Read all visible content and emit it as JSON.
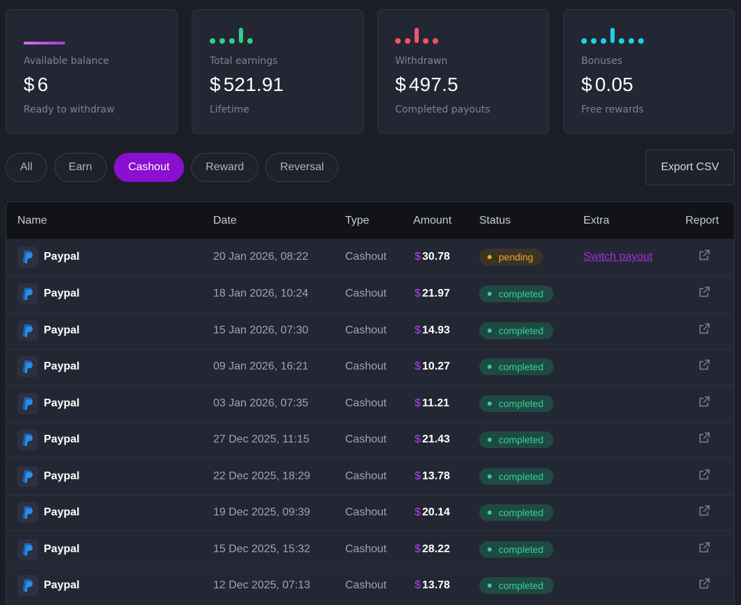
{
  "stats": [
    {
      "label": "Available balance",
      "currency": "$",
      "value": "6",
      "sub": "Ready to withdraw",
      "deco": "line",
      "color": "#c35ef0"
    },
    {
      "label": "Total earnings",
      "currency": "$",
      "value": "521.91",
      "sub": "Lifetime",
      "deco": "dots",
      "color": "#2fcf8b"
    },
    {
      "label": "Withdrawn",
      "currency": "$",
      "value": "497.5",
      "sub": "Completed payouts",
      "deco": "dots",
      "color": "#f0536b"
    },
    {
      "label": "Bonuses",
      "currency": "$",
      "value": "0.05",
      "sub": "Free rewards",
      "deco": "dots",
      "color": "#19d3ea"
    }
  ],
  "filters": {
    "tabs": [
      "All",
      "Earn",
      "Cashout",
      "Reward",
      "Reversal"
    ],
    "active": "Cashout",
    "export_label": "Export CSV"
  },
  "table": {
    "columns": [
      "Name",
      "Date",
      "Type",
      "Amount",
      "Status",
      "Extra",
      "Report"
    ],
    "rows": [
      {
        "name": "Paypal",
        "date": "20 Jan 2026, 08:22",
        "type": "Cashout",
        "currency": "$",
        "amount": "30.78",
        "status": "pending",
        "extra": "Switch payout"
      },
      {
        "name": "Paypal",
        "date": "18 Jan 2026, 10:24",
        "type": "Cashout",
        "currency": "$",
        "amount": "21.97",
        "status": "completed",
        "extra": ""
      },
      {
        "name": "Paypal",
        "date": "15 Jan 2026, 07:30",
        "type": "Cashout",
        "currency": "$",
        "amount": "14.93",
        "status": "completed",
        "extra": ""
      },
      {
        "name": "Paypal",
        "date": "09 Jan 2026, 16:21",
        "type": "Cashout",
        "currency": "$",
        "amount": "10.27",
        "status": "completed",
        "extra": ""
      },
      {
        "name": "Paypal",
        "date": "03 Jan 2026, 07:35",
        "type": "Cashout",
        "currency": "$",
        "amount": "11.21",
        "status": "completed",
        "extra": ""
      },
      {
        "name": "Paypal",
        "date": "27 Dec 2025, 11:15",
        "type": "Cashout",
        "currency": "$",
        "amount": "21.43",
        "status": "completed",
        "extra": ""
      },
      {
        "name": "Paypal",
        "date": "22 Dec 2025, 18:29",
        "type": "Cashout",
        "currency": "$",
        "amount": "13.78",
        "status": "completed",
        "extra": ""
      },
      {
        "name": "Paypal",
        "date": "19 Dec 2025, 09:39",
        "type": "Cashout",
        "currency": "$",
        "amount": "20.14",
        "status": "completed",
        "extra": ""
      },
      {
        "name": "Paypal",
        "date": "15 Dec 2025, 15:32",
        "type": "Cashout",
        "currency": "$",
        "amount": "28.22",
        "status": "completed",
        "extra": ""
      },
      {
        "name": "Paypal",
        "date": "12 Dec 2025, 07:13",
        "type": "Cashout",
        "currency": "$",
        "amount": "13.78",
        "status": "completed",
        "extra": ""
      }
    ]
  },
  "icons": {
    "provider": "paypal-icon",
    "report": "external-link-icon"
  },
  "colors": {
    "accent": "#8a0fd1",
    "pending": "#f1a526",
    "completed": "#2fd39a"
  }
}
